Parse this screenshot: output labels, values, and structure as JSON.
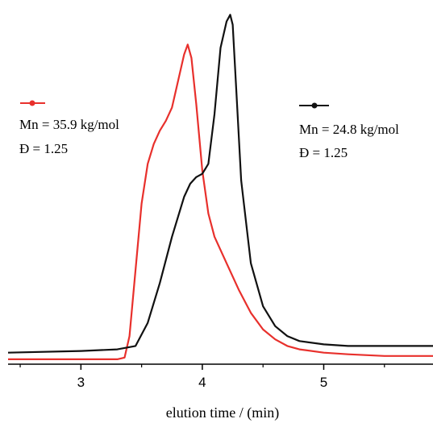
{
  "chart_data": {
    "type": "line",
    "xlabel": "elution time / (min)",
    "ylabel": "",
    "xlim": [
      2.4,
      5.9
    ],
    "ylim": [
      0,
      1.08
    ],
    "xticks": [
      3,
      4,
      5
    ],
    "grid": false,
    "series": [
      {
        "key": "red",
        "color": "#e8302c",
        "legend_label": "Mn = 35.9 kg/mol",
        "dispersity_label": "Đ = 1.25",
        "x": [
          2.4,
          3.0,
          3.3,
          3.36,
          3.4,
          3.45,
          3.5,
          3.55,
          3.6,
          3.65,
          3.7,
          3.75,
          3.8,
          3.85,
          3.88,
          3.91,
          3.95,
          4.0,
          4.05,
          4.1,
          4.2,
          4.3,
          4.4,
          4.5,
          4.6,
          4.7,
          4.8,
          5.0,
          5.2,
          5.5,
          5.9
        ],
        "y": [
          0.01,
          0.01,
          0.01,
          0.015,
          0.08,
          0.28,
          0.48,
          0.6,
          0.66,
          0.7,
          0.73,
          0.77,
          0.85,
          0.93,
          0.96,
          0.92,
          0.78,
          0.58,
          0.45,
          0.38,
          0.3,
          0.22,
          0.15,
          0.1,
          0.07,
          0.05,
          0.04,
          0.03,
          0.025,
          0.02,
          0.02
        ]
      },
      {
        "key": "black",
        "color": "#111111",
        "legend_label": "Mn = 24.8 kg/mol",
        "dispersity_label": "Đ = 1.25",
        "x": [
          2.4,
          3.0,
          3.3,
          3.45,
          3.55,
          3.65,
          3.75,
          3.85,
          3.9,
          3.95,
          4.0,
          4.05,
          4.1,
          4.15,
          4.2,
          4.23,
          4.25,
          4.28,
          4.32,
          4.4,
          4.5,
          4.6,
          4.7,
          4.8,
          5.0,
          5.2,
          5.5,
          5.9
        ],
        "y": [
          0.03,
          0.035,
          0.04,
          0.05,
          0.12,
          0.24,
          0.38,
          0.5,
          0.54,
          0.56,
          0.57,
          0.6,
          0.75,
          0.95,
          1.03,
          1.05,
          1.02,
          0.82,
          0.55,
          0.3,
          0.17,
          0.11,
          0.08,
          0.065,
          0.055,
          0.05,
          0.05,
          0.05
        ]
      }
    ]
  }
}
